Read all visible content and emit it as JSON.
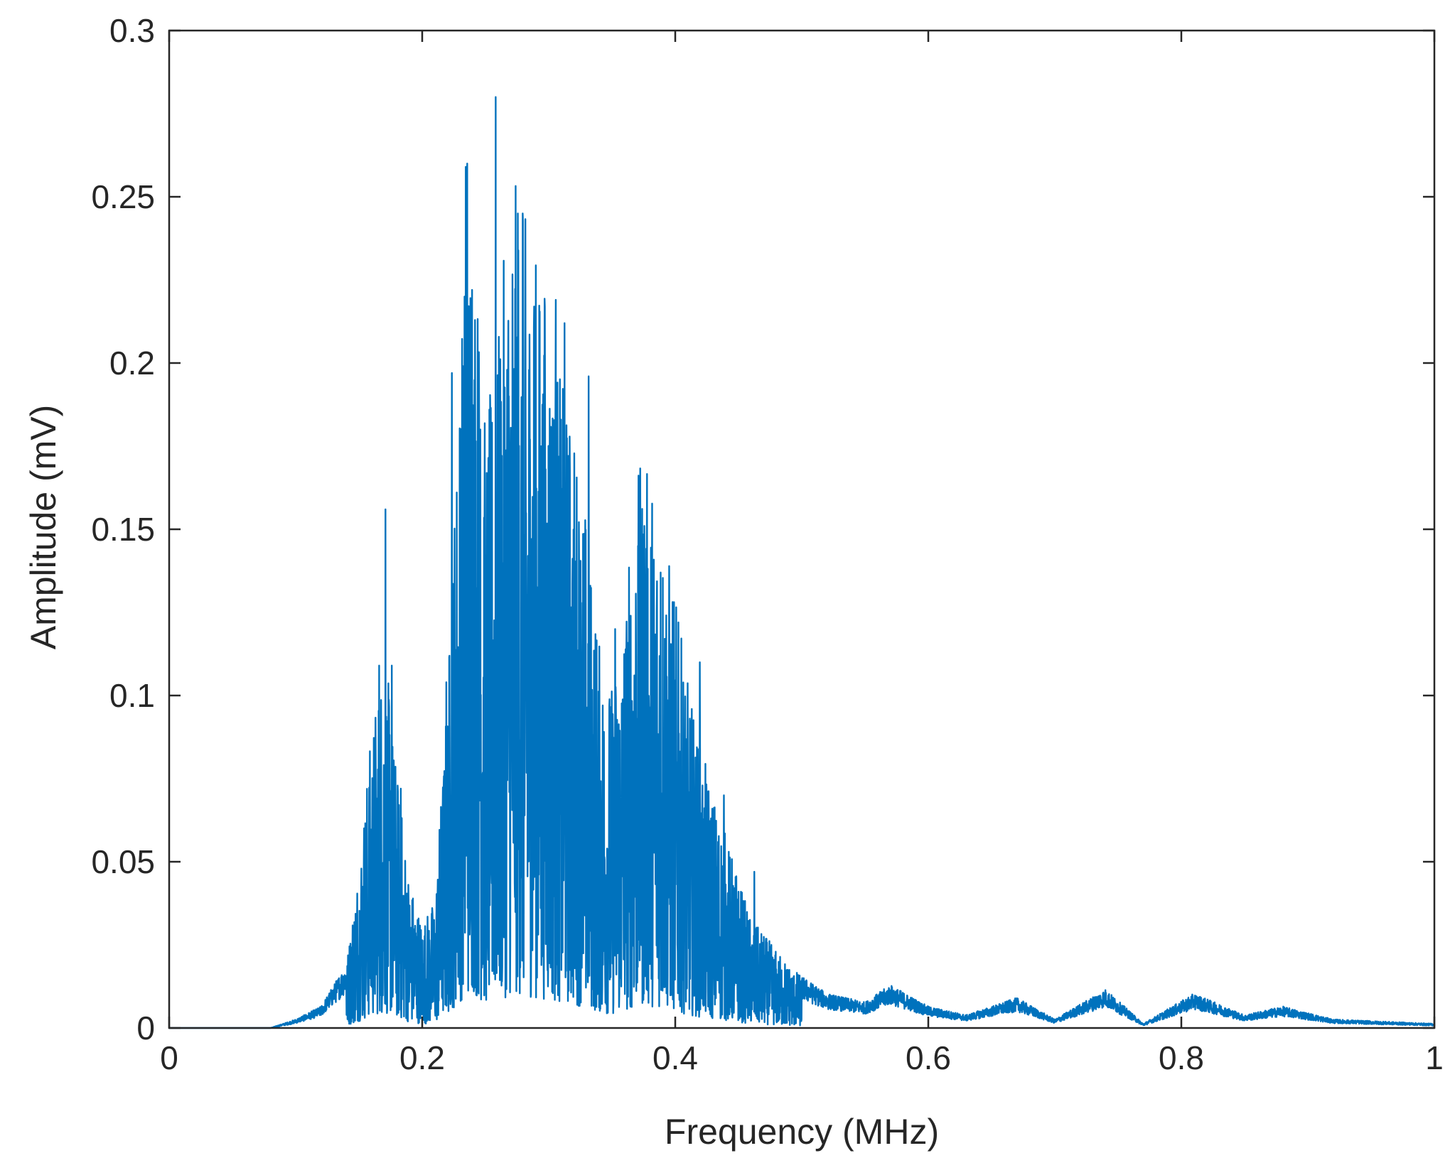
{
  "chart_data": {
    "type": "line",
    "title": "",
    "xlabel": "Frequency (MHz)",
    "ylabel": "Amplitude (mV)",
    "xlim": [
      0,
      1
    ],
    "ylim": [
      0,
      0.3
    ],
    "xticks": [
      0,
      0.2,
      0.4,
      0.6,
      0.8,
      1
    ],
    "xtick_labels": [
      "0",
      "0.2",
      "0.4",
      "0.6",
      "0.8",
      "1"
    ],
    "yticks": [
      0,
      0.05,
      0.1,
      0.15,
      0.2,
      0.25,
      0.3
    ],
    "ytick_labels": [
      "0",
      "0.05",
      "0.1",
      "0.15",
      "0.2",
      "0.25",
      "0.3"
    ],
    "grid": false,
    "box": true,
    "legend": "none",
    "series_color": "#0072BD",
    "series": [
      {
        "name": "",
        "envelope_x": [
          0,
          0.08,
          0.1,
          0.12,
          0.14,
          0.15,
          0.16,
          0.17,
          0.18,
          0.19,
          0.2,
          0.21,
          0.22,
          0.23,
          0.24,
          0.25,
          0.26,
          0.27,
          0.28,
          0.29,
          0.3,
          0.31,
          0.32,
          0.33,
          0.34,
          0.35,
          0.36,
          0.37,
          0.38,
          0.39,
          0.4,
          0.41,
          0.42,
          0.43,
          0.44,
          0.45,
          0.46,
          0.47,
          0.48,
          0.5,
          0.52,
          0.55,
          0.57,
          0.6,
          0.63,
          0.67,
          0.7,
          0.74,
          0.77,
          0.81,
          0.85,
          0.88,
          0.92,
          0.96,
          1
        ],
        "envelope_y": [
          0,
          0,
          0.002,
          0.005,
          0.015,
          0.04,
          0.07,
          0.09,
          0.06,
          0.035,
          0.025,
          0.03,
          0.08,
          0.16,
          0.2,
          0.14,
          0.16,
          0.2,
          0.19,
          0.18,
          0.17,
          0.15,
          0.14,
          0.12,
          0.09,
          0.08,
          0.1,
          0.13,
          0.13,
          0.12,
          0.1,
          0.08,
          0.065,
          0.055,
          0.045,
          0.035,
          0.025,
          0.022,
          0.018,
          0.012,
          0.008,
          0.006,
          0.01,
          0.005,
          0.003,
          0.007,
          0.002,
          0.009,
          0.001,
          0.008,
          0.003,
          0.005,
          0.002,
          0.0015,
          0.001
        ],
        "peaks": [
          {
            "x": 0.1525,
            "y": 0.034
          },
          {
            "x": 0.166,
            "y": 0.109
          },
          {
            "x": 0.171,
            "y": 0.156
          },
          {
            "x": 0.176,
            "y": 0.109
          },
          {
            "x": 0.183,
            "y": 0.072
          },
          {
            "x": 0.219,
            "y": 0.104
          },
          {
            "x": 0.2235,
            "y": 0.197
          },
          {
            "x": 0.2335,
            "y": 0.22
          },
          {
            "x": 0.2345,
            "y": 0.259
          },
          {
            "x": 0.2355,
            "y": 0.26
          },
          {
            "x": 0.2395,
            "y": 0.222
          },
          {
            "x": 0.246,
            "y": 0.18
          },
          {
            "x": 0.258,
            "y": 0.28
          },
          {
            "x": 0.2685,
            "y": 0.19
          },
          {
            "x": 0.2755,
            "y": 0.245
          },
          {
            "x": 0.2795,
            "y": 0.245
          },
          {
            "x": 0.2885,
            "y": 0.217
          },
          {
            "x": 0.297,
            "y": 0.217
          },
          {
            "x": 0.3055,
            "y": 0.219
          },
          {
            "x": 0.3125,
            "y": 0.212
          },
          {
            "x": 0.3315,
            "y": 0.196
          },
          {
            "x": 0.3525,
            "y": 0.12
          },
          {
            "x": 0.3705,
            "y": 0.145
          },
          {
            "x": 0.3755,
            "y": 0.151
          },
          {
            "x": 0.3885,
            "y": 0.137
          },
          {
            "x": 0.4025,
            "y": 0.122
          },
          {
            "x": 0.4195,
            "y": 0.11
          },
          {
            "x": 0.4385,
            "y": 0.07
          },
          {
            "x": 0.4625,
            "y": 0.047
          }
        ]
      }
    ]
  }
}
